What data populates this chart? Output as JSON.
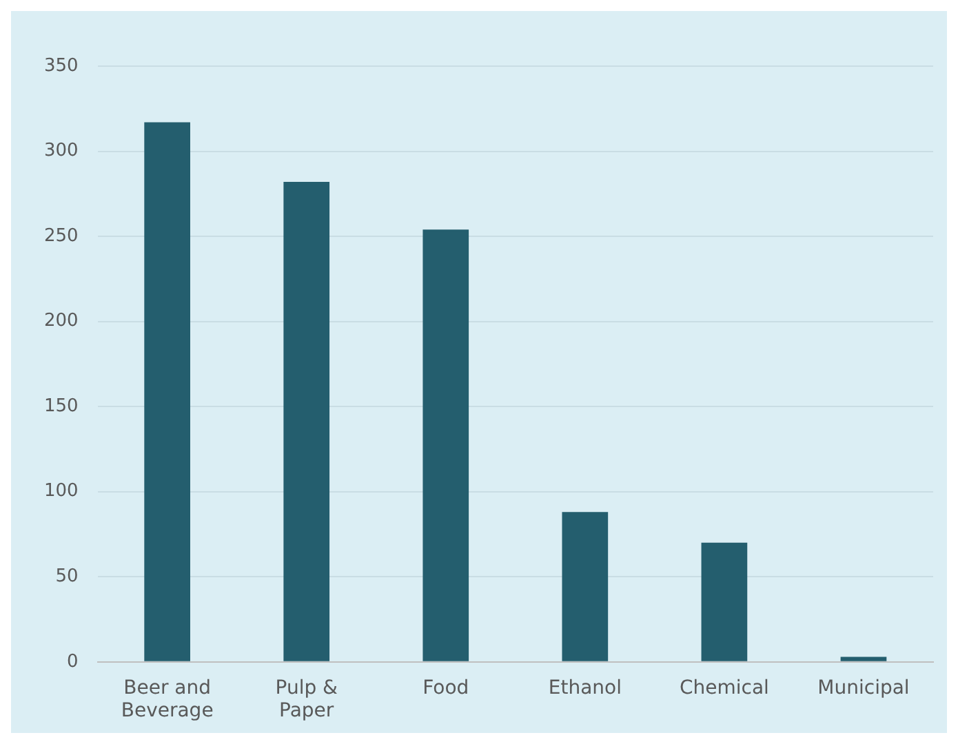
{
  "chart_data": {
    "type": "bar",
    "categories": [
      "Beer and Beverage",
      "Pulp & Paper",
      "Food",
      "Ethanol",
      "Chemical",
      "Municipal"
    ],
    "values": [
      317,
      282,
      254,
      88,
      70,
      3
    ],
    "color": "#245e6e",
    "ylim": [
      0,
      350
    ],
    "yticks": [
      0,
      50,
      100,
      150,
      200,
      250,
      300,
      350
    ],
    "grid": "y"
  }
}
